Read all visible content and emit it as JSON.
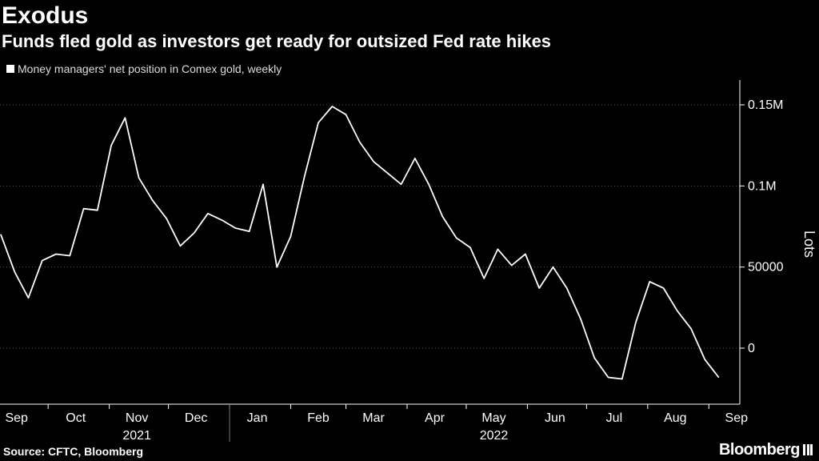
{
  "header": {
    "title": "Exodus",
    "subtitle": "Funds fled gold as investors get ready for outsized Fed rate hikes"
  },
  "footer": {
    "source": "Source: CFTC, Bloomberg",
    "brand": "Bloomberg"
  },
  "colors": {
    "background": "#000000",
    "line": "#ffffff",
    "grid": "#555555"
  },
  "chart_data": {
    "type": "line",
    "title": "Exodus",
    "subtitle": "Funds fled gold as investors get ready for outsized Fed rate hikes",
    "xlabel": "",
    "ylabel": "Lots",
    "ylim": [
      -40000,
      165000
    ],
    "y_ticks": [
      0,
      50000,
      100000,
      150000
    ],
    "y_tick_labels": [
      "0",
      "50000",
      "0.1M",
      "0.15M"
    ],
    "y_axis_side": "right",
    "grid": "horizontal dotted",
    "legend": "top-left",
    "x_ticks": [
      {
        "label": "Sep",
        "date": "2021-09-15"
      },
      {
        "label": "Oct",
        "date": "2021-10-15"
      },
      {
        "label": "Nov",
        "date": "2021-11-15"
      },
      {
        "label": "Dec",
        "date": "2021-12-15"
      },
      {
        "label": "Jan",
        "date": "2022-01-15"
      },
      {
        "label": "Feb",
        "date": "2022-02-15"
      },
      {
        "label": "Mar",
        "date": "2022-03-15"
      },
      {
        "label": "Apr",
        "date": "2022-04-15"
      },
      {
        "label": "May",
        "date": "2022-05-15"
      },
      {
        "label": "Jun",
        "date": "2022-06-15"
      },
      {
        "label": "Jul",
        "date": "2022-07-15"
      },
      {
        "label": "Aug",
        "date": "2022-08-15"
      },
      {
        "label": "Sep",
        "date": "2022-09-15"
      }
    ],
    "year_labels": [
      {
        "label": "2021",
        "date": "2021-11-15"
      },
      {
        "label": "2022",
        "date": "2022-05-15"
      }
    ],
    "year_divider_date": "2022-01-01",
    "series": [
      {
        "name": "Money managers' net position in Comex gold, weekly",
        "points": [
          [
            "2021-09-07",
            70000
          ],
          [
            "2021-09-14",
            47000
          ],
          [
            "2021-09-21",
            31000
          ],
          [
            "2021-09-28",
            54000
          ],
          [
            "2021-10-05",
            58000
          ],
          [
            "2021-10-12",
            57000
          ],
          [
            "2021-10-19",
            86000
          ],
          [
            "2021-10-26",
            85000
          ],
          [
            "2021-11-02",
            125000
          ],
          [
            "2021-11-09",
            142000
          ],
          [
            "2021-11-16",
            105000
          ],
          [
            "2021-11-23",
            91000
          ],
          [
            "2021-11-30",
            80000
          ],
          [
            "2021-12-07",
            63000
          ],
          [
            "2021-12-14",
            71000
          ],
          [
            "2021-12-21",
            83000
          ],
          [
            "2021-12-28",
            79000
          ],
          [
            "2022-01-04",
            74000
          ],
          [
            "2022-01-11",
            72000
          ],
          [
            "2022-01-18",
            101000
          ],
          [
            "2022-01-25",
            50000
          ],
          [
            "2022-02-01",
            69000
          ],
          [
            "2022-02-08",
            106000
          ],
          [
            "2022-02-15",
            139000
          ],
          [
            "2022-02-22",
            149000
          ],
          [
            "2022-03-01",
            144000
          ],
          [
            "2022-03-08",
            127000
          ],
          [
            "2022-03-15",
            115000
          ],
          [
            "2022-03-22",
            108000
          ],
          [
            "2022-03-29",
            101000
          ],
          [
            "2022-04-05",
            117000
          ],
          [
            "2022-04-12",
            101000
          ],
          [
            "2022-04-19",
            81000
          ],
          [
            "2022-04-26",
            68000
          ],
          [
            "2022-05-03",
            62000
          ],
          [
            "2022-05-10",
            43000
          ],
          [
            "2022-05-17",
            61000
          ],
          [
            "2022-05-24",
            51000
          ],
          [
            "2022-05-31",
            58000
          ],
          [
            "2022-06-07",
            37000
          ],
          [
            "2022-06-14",
            50000
          ],
          [
            "2022-06-21",
            37000
          ],
          [
            "2022-06-28",
            18000
          ],
          [
            "2022-07-05",
            -6000
          ],
          [
            "2022-07-12",
            -18000
          ],
          [
            "2022-07-19",
            -19000
          ],
          [
            "2022-07-26",
            16000
          ],
          [
            "2022-08-02",
            41000
          ],
          [
            "2022-08-09",
            37000
          ],
          [
            "2022-08-16",
            23000
          ],
          [
            "2022-08-23",
            12000
          ],
          [
            "2022-08-30",
            -7000
          ],
          [
            "2022-09-06",
            -18000
          ]
        ]
      }
    ]
  }
}
